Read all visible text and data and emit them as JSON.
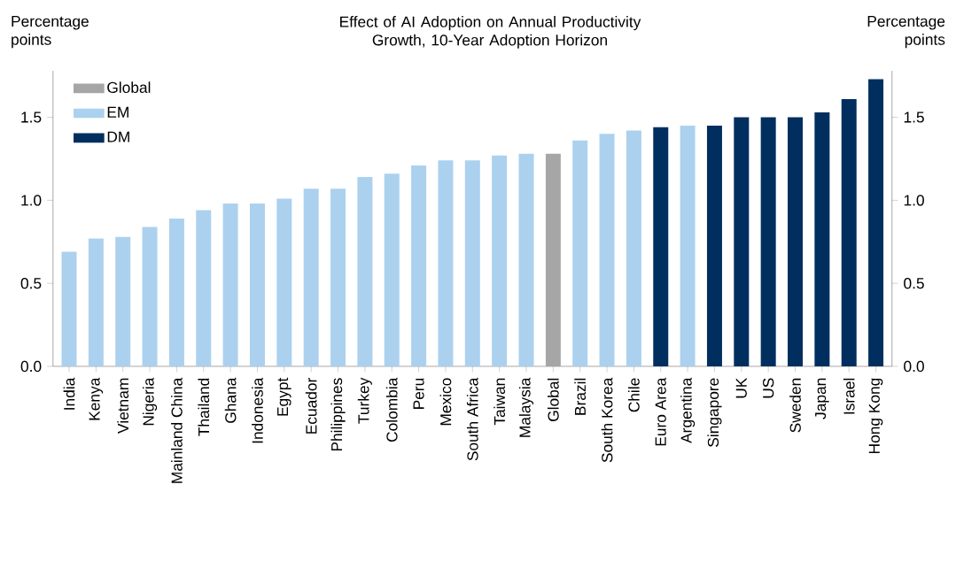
{
  "chart_data": {
    "type": "bar",
    "title": "Effect of AI Adoption on Annual Productivity Growth, 10-Year Adoption Horizon",
    "ylabel": "Percentage points",
    "y2label": "Percentage points",
    "categories": [
      "India",
      "Kenya",
      "Vietnam",
      "Nigeria",
      "Mainland China",
      "Thailand",
      "Ghana",
      "Indonesia",
      "Egypt",
      "Ecuador",
      "Philippines",
      "Turkey",
      "Colombia",
      "Peru",
      "Mexico",
      "South Africa",
      "Taiwan",
      "Malaysia",
      "Global",
      "Brazil",
      "South Korea",
      "Chile",
      "Euro Area",
      "Argentina",
      "Singapore",
      "UK",
      "US",
      "Sweden",
      "Japan",
      "Israel",
      "Hong Kong"
    ],
    "series": [
      {
        "name": "Global",
        "color": "#a6a6a6",
        "values": [
          null,
          null,
          null,
          null,
          null,
          null,
          null,
          null,
          null,
          null,
          null,
          null,
          null,
          null,
          null,
          null,
          null,
          null,
          1.28,
          null,
          null,
          null,
          null,
          null,
          null,
          null,
          null,
          null,
          null,
          null,
          null
        ]
      },
      {
        "name": "EM",
        "color": "#abd1ef",
        "values": [
          0.69,
          0.77,
          0.78,
          0.84,
          0.89,
          0.94,
          0.98,
          0.98,
          1.01,
          1.07,
          1.07,
          1.14,
          1.16,
          1.21,
          1.24,
          1.24,
          1.27,
          1.28,
          null,
          1.36,
          1.4,
          1.42,
          null,
          1.45,
          null,
          null,
          null,
          null,
          null,
          null,
          null
        ]
      },
      {
        "name": "DM",
        "color": "#002f5f",
        "values": [
          null,
          null,
          null,
          null,
          null,
          null,
          null,
          null,
          null,
          null,
          null,
          null,
          null,
          null,
          null,
          null,
          null,
          null,
          null,
          null,
          null,
          null,
          1.44,
          null,
          1.45,
          1.5,
          1.5,
          1.5,
          1.53,
          1.61,
          1.73
        ]
      }
    ],
    "ylim": [
      0,
      1.78
    ],
    "yticks": [
      {
        "value": 0,
        "label": "0.0"
      },
      0.5,
      {
        "value": 1,
        "label": "1.0"
      },
      1.5
    ],
    "y2lim": [
      0,
      1.78
    ],
    "y2ticks": [
      {
        "value": 0,
        "label": "0.0"
      },
      0.5,
      {
        "value": 1,
        "label": "1.0"
      },
      1.5
    ],
    "legend": "top left",
    "grid": false
  }
}
